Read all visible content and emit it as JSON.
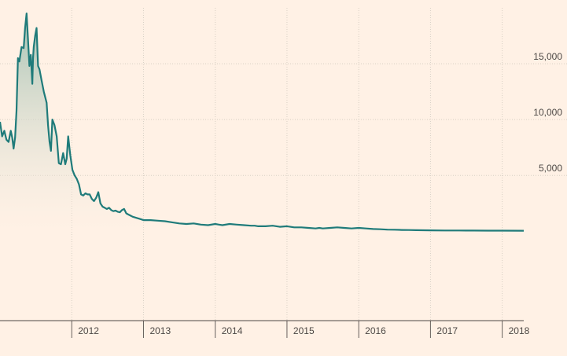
{
  "chart_data": {
    "type": "area",
    "title": "",
    "xlabel": "",
    "ylabel": "",
    "xlim": [
      2011.0,
      2018.3
    ],
    "ylim": [
      -8000,
      20000
    ],
    "y_ticks": [
      5000,
      10000,
      15000
    ],
    "y_tick_labels": [
      "5,000",
      "10,000",
      "15,000"
    ],
    "x_ticks": [
      2012,
      2013,
      2014,
      2015,
      2016,
      2017,
      2018
    ],
    "x_tick_labels": [
      "2012",
      "2013",
      "2014",
      "2015",
      "2016",
      "2017",
      "2018"
    ],
    "grid": true,
    "line_color": "#1f7b7a",
    "fill_color_top": "#9fbfb0",
    "background": "#fff1e5",
    "series": [
      {
        "x": [
          2011.0,
          2011.03,
          2011.06,
          2011.09,
          2011.12,
          2011.15,
          2011.17,
          2011.19,
          2011.21,
          2011.23,
          2011.25,
          2011.27,
          2011.3,
          2011.33,
          2011.35,
          2011.37,
          2011.39,
          2011.41,
          2011.43,
          2011.45,
          2011.46,
          2011.47,
          2011.49,
          2011.51,
          2011.53,
          2011.55,
          2011.58,
          2011.61,
          2011.63,
          2011.65,
          2011.67,
          2011.69,
          2011.71,
          2011.73,
          2011.76,
          2011.79,
          2011.82,
          2011.85,
          2011.88,
          2011.91,
          2011.93,
          2011.95,
          2011.98,
          2012.01,
          2012.04,
          2012.07,
          2012.1,
          2012.13,
          2012.16,
          2012.19,
          2012.22,
          2012.25,
          2012.28,
          2012.31,
          2012.34,
          2012.37,
          2012.4,
          2012.43,
          2012.46,
          2012.49,
          2012.52,
          2012.55,
          2012.58,
          2012.61,
          2012.64,
          2012.67,
          2012.7,
          2012.73,
          2012.76,
          2012.79,
          2012.82,
          2012.85,
          2012.9,
          2012.95,
          2013.0,
          2013.05,
          2013.1,
          2013.2,
          2013.3,
          2013.4,
          2013.5,
          2013.6,
          2013.7,
          2013.8,
          2013.9,
          2014.0,
          2014.05,
          2014.1,
          2014.2,
          2014.3,
          2014.4,
          2014.5,
          2014.55,
          2014.6,
          2014.7,
          2014.8,
          2014.9,
          2015.0,
          2015.1,
          2015.2,
          2015.3,
          2015.4,
          2015.45,
          2015.5,
          2015.6,
          2015.7,
          2015.8,
          2015.9,
          2016.0,
          2016.1,
          2016.2,
          2016.3,
          2016.4,
          2016.5,
          2016.6,
          2016.7,
          2016.8,
          2016.9,
          2017.0,
          2017.2,
          2017.4,
          2017.5,
          2017.6,
          2017.8,
          2018.0,
          2018.3
        ],
        "values": [
          9800,
          8500,
          9000,
          8200,
          8000,
          9000,
          8400,
          7400,
          8400,
          10800,
          15500,
          15200,
          16500,
          16400,
          18200,
          19500,
          17200,
          14800,
          15800,
          13200,
          15500,
          16500,
          17500,
          18200,
          14800,
          14500,
          13500,
          12500,
          12000,
          11500,
          9500,
          8000,
          7200,
          10000,
          9500,
          8500,
          6100,
          6000,
          7000,
          6000,
          6500,
          8500,
          6800,
          5500,
          5000,
          4700,
          4200,
          3300,
          3200,
          3400,
          3300,
          3300,
          2900,
          2700,
          3000,
          3500,
          2500,
          2200,
          2100,
          2000,
          2100,
          1900,
          1800,
          1850,
          1750,
          1700,
          1900,
          2000,
          1600,
          1500,
          1400,
          1300,
          1200,
          1100,
          1000,
          1000,
          1000,
          950,
          900,
          800,
          700,
          650,
          700,
          600,
          550,
          650,
          600,
          550,
          650,
          600,
          550,
          500,
          500,
          450,
          450,
          500,
          400,
          450,
          350,
          350,
          300,
          250,
          300,
          250,
          300,
          350,
          300,
          250,
          300,
          250,
          200,
          180,
          150,
          140,
          120,
          110,
          100,
          90,
          80,
          70,
          70,
          65,
          60,
          55,
          55,
          50
        ]
      }
    ]
  }
}
